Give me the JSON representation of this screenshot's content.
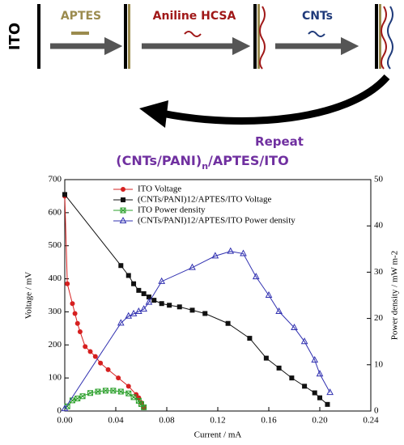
{
  "diagram": {
    "substrate": "ITO",
    "steps": [
      "APTES",
      "Aniline HCSA",
      "CNTs"
    ],
    "repeat": "Repeat",
    "product": [
      "(CNTs/PANI)",
      "n",
      "/APTES/ITO"
    ]
  },
  "chart_data": {
    "type": "line",
    "xlabel": "Current / mA",
    "ylabel": "Voltage / mV",
    "y2label": "Power density / mW m-2",
    "xlim": [
      0,
      0.24
    ],
    "xticks": [
      {
        "value": 0,
        "label": "0.00"
      },
      {
        "value": 0.04,
        "label": "0.04"
      },
      {
        "value": 0.08,
        "label": "0.08"
      },
      {
        "value": 0.12,
        "label": "0.12"
      },
      {
        "value": 0.16,
        "label": "0.16"
      },
      {
        "value": 0.2,
        "label": "0.20"
      },
      {
        "value": 0.24,
        "label": "0.24"
      }
    ],
    "ylim": [
      0,
      700
    ],
    "yticks": [
      0,
      100,
      200,
      300,
      400,
      500,
      600,
      700
    ],
    "y2lim": [
      0,
      50
    ],
    "y2ticks": [
      0,
      10,
      20,
      30,
      40,
      50
    ],
    "legend": "upper center",
    "series": [
      {
        "name": "ITO Voltage",
        "color": "#d62020",
        "marker": "circle",
        "x": [
          0,
          0.002,
          0.006,
          0.008,
          0.01,
          0.012,
          0.016,
          0.02,
          0.024,
          0.028,
          0.034,
          0.042,
          0.05,
          0.056,
          0.058,
          0.06,
          0.062
        ],
        "values": [
          650,
          385,
          325,
          295,
          265,
          240,
          195,
          180,
          165,
          145,
          125,
          100,
          75,
          50,
          40,
          25,
          10
        ]
      },
      {
        "name": "(CNTs/PANI)12/APTES/ITO Voltage",
        "color": "#111111",
        "marker": "square",
        "x": [
          0,
          0.044,
          0.05,
          0.054,
          0.058,
          0.062,
          0.066,
          0.07,
          0.076,
          0.082,
          0.09,
          0.1,
          0.11,
          0.128,
          0.145,
          0.158,
          0.168,
          0.178,
          0.188,
          0.196,
          0.2,
          0.206
        ],
        "values": [
          655,
          440,
          410,
          385,
          365,
          355,
          345,
          335,
          325,
          320,
          315,
          305,
          295,
          265,
          220,
          160,
          130,
          100,
          75,
          55,
          40,
          20
        ]
      },
      {
        "name": "ITO Power density",
        "color": "#2ca02c",
        "marker": "square-x",
        "axis": "y2",
        "x": [
          0.002,
          0.006,
          0.01,
          0.014,
          0.02,
          0.026,
          0.032,
          0.038,
          0.044,
          0.05,
          0.054,
          0.058,
          0.06,
          0.062
        ],
        "values": [
          1,
          2.3,
          2.7,
          3.2,
          3.9,
          4.2,
          4.4,
          4.4,
          4.2,
          3.8,
          3,
          2.2,
          1.5,
          0.8
        ]
      },
      {
        "name": "(CNTs/PANI)12/APTES/ITO Power density",
        "color": "#3030b0",
        "marker": "triangle",
        "axis": "y2",
        "x": [
          0,
          0.044,
          0.05,
          0.054,
          0.058,
          0.062,
          0.066,
          0.076,
          0.1,
          0.118,
          0.13,
          0.14,
          0.15,
          0.16,
          0.168,
          0.18,
          0.188,
          0.196,
          0.2,
          0.208
        ],
        "values": [
          0.5,
          19,
          20.5,
          21,
          21.5,
          22,
          23.5,
          28,
          31,
          33.5,
          34.5,
          34,
          29,
          25,
          21.5,
          18,
          15,
          11,
          8,
          4
        ]
      }
    ]
  }
}
